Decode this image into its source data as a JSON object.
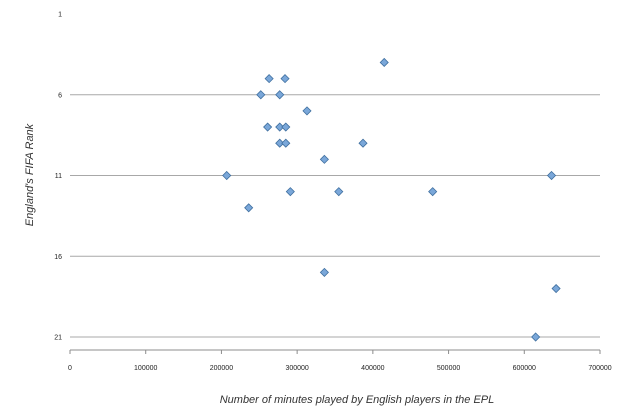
{
  "chart_data": {
    "type": "scatter",
    "title": "",
    "xlabel": "Number of minutes played by English players in the EPL",
    "ylabel": "England's FIFA Rank",
    "xlim": [
      0,
      700000
    ],
    "ylim": [
      21,
      1
    ],
    "y_reversed": true,
    "x_ticks": [
      0,
      100000,
      200000,
      300000,
      400000,
      500000,
      600000,
      700000
    ],
    "y_ticks": [
      1,
      6,
      11,
      16,
      21
    ],
    "gridlines": "horizontal",
    "legend": "none",
    "marker": "diamond",
    "marker_color": "#7aa7d9",
    "marker_edge_color": "#3f6f9f",
    "grid_color": "#a8a8a8",
    "series": [
      {
        "points": [
          {
            "x": 415000,
            "y": 4
          },
          {
            "x": 263000,
            "y": 5
          },
          {
            "x": 284000,
            "y": 5
          },
          {
            "x": 252000,
            "y": 6
          },
          {
            "x": 277000,
            "y": 6
          },
          {
            "x": 313000,
            "y": 7
          },
          {
            "x": 261000,
            "y": 8
          },
          {
            "x": 277000,
            "y": 8
          },
          {
            "x": 285000,
            "y": 8
          },
          {
            "x": 277000,
            "y": 9
          },
          {
            "x": 285000,
            "y": 9
          },
          {
            "x": 387000,
            "y": 9
          },
          {
            "x": 336000,
            "y": 10
          },
          {
            "x": 207000,
            "y": 11
          },
          {
            "x": 636000,
            "y": 11
          },
          {
            "x": 291000,
            "y": 12
          },
          {
            "x": 355000,
            "y": 12
          },
          {
            "x": 479000,
            "y": 12
          },
          {
            "x": 236000,
            "y": 13
          },
          {
            "x": 336000,
            "y": 17
          },
          {
            "x": 642000,
            "y": 18
          },
          {
            "x": 615000,
            "y": 21
          }
        ]
      }
    ]
  }
}
